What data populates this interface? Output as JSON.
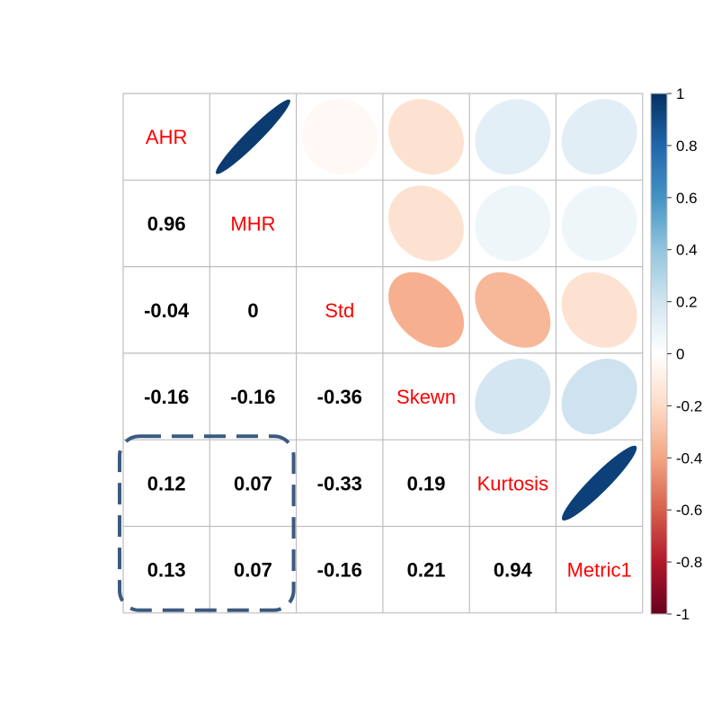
{
  "chart_data": {
    "type": "heatmap",
    "variables": [
      "AHR",
      "MHR",
      "Std",
      "Skewn",
      "Kurtosis",
      "Metric1"
    ],
    "matrix": [
      [
        1,
        0.96,
        -0.04,
        -0.16,
        0.12,
        0.13
      ],
      [
        0.96,
        1,
        0,
        -0.16,
        0.07,
        0.07
      ],
      [
        -0.04,
        0,
        1,
        -0.36,
        -0.33,
        -0.16
      ],
      [
        -0.16,
        -0.16,
        -0.36,
        1,
        0.19,
        0.21
      ],
      [
        0.12,
        0.07,
        -0.33,
        0.19,
        1,
        0.94
      ],
      [
        0.13,
        0.07,
        -0.16,
        0.21,
        0.94,
        1
      ]
    ],
    "lower_labels": [
      {
        "row": 1,
        "col": 0,
        "text": "0.96"
      },
      {
        "row": 2,
        "col": 0,
        "text": "-0.04"
      },
      {
        "row": 2,
        "col": 1,
        "text": "0"
      },
      {
        "row": 3,
        "col": 0,
        "text": "-0.16"
      },
      {
        "row": 3,
        "col": 1,
        "text": "-0.16"
      },
      {
        "row": 3,
        "col": 2,
        "text": "-0.36"
      },
      {
        "row": 4,
        "col": 0,
        "text": "0.12"
      },
      {
        "row": 4,
        "col": 1,
        "text": "0.07"
      },
      {
        "row": 4,
        "col": 2,
        "text": "-0.33"
      },
      {
        "row": 4,
        "col": 3,
        "text": "0.19"
      },
      {
        "row": 5,
        "col": 0,
        "text": "0.13"
      },
      {
        "row": 5,
        "col": 1,
        "text": "0.07"
      },
      {
        "row": 5,
        "col": 2,
        "text": "-0.16"
      },
      {
        "row": 5,
        "col": 3,
        "text": "0.21"
      },
      {
        "row": 5,
        "col": 4,
        "text": "0.94"
      }
    ],
    "upper": "ellipse",
    "lower": "number",
    "highlight": {
      "rows": [
        4,
        5
      ],
      "cols": [
        0,
        1
      ],
      "style": "dashed-rounded-box"
    },
    "colorbar": {
      "range": [
        -1,
        1
      ],
      "ticks": [
        "1",
        "0.8",
        "0.6",
        "0.4",
        "0.2",
        "0",
        "-0.2",
        "-0.4",
        "-0.6",
        "-0.8",
        "-1"
      ]
    },
    "colors": {
      "scale": [
        "#67001F",
        "#B2182B",
        "#D6604D",
        "#F4A582",
        "#FDDBC7",
        "#FFFFFF",
        "#D1E5F0",
        "#92C5DE",
        "#4393C3",
        "#2166AC",
        "#053061"
      ],
      "diag_label": "#FF0000",
      "coef_text": "#000000",
      "grid": "#BEBEBE",
      "highlight": "#3C5A80"
    }
  }
}
